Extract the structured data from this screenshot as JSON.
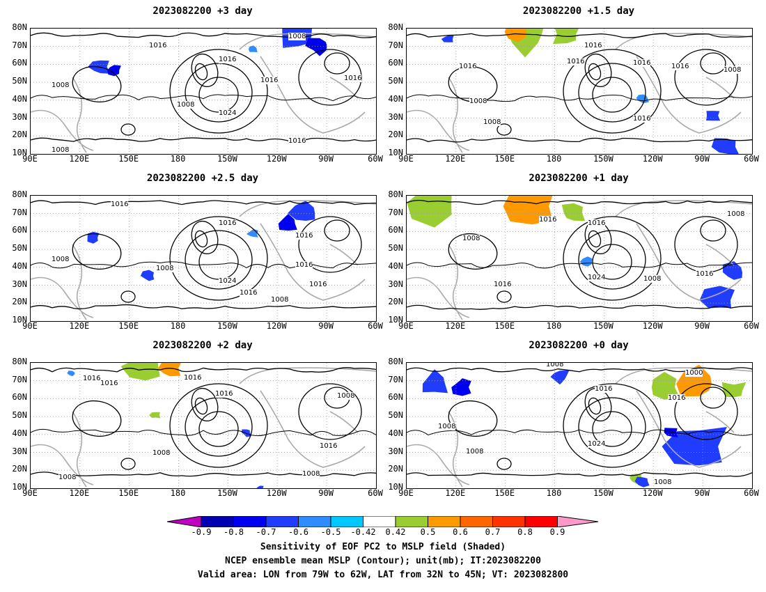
{
  "panels": [
    {
      "title": "2023082200 +3 day"
    },
    {
      "title": "2023082200 +1.5 day"
    },
    {
      "title": "2023082200 +2.5 day"
    },
    {
      "title": "2023082200 +1 day"
    },
    {
      "title": "2023082200 +2 day"
    },
    {
      "title": "2023082200 +0 day"
    }
  ],
  "axes": {
    "lat_ticks": [
      "80N",
      "70N",
      "60N",
      "50N",
      "40N",
      "30N",
      "20N",
      "10N"
    ],
    "lon_ticks": [
      "90E",
      "120E",
      "150E",
      "180",
      "150W",
      "120W",
      "90W",
      "60W"
    ]
  },
  "contour_labels": {
    "p0": [
      "1016",
      "1016",
      "1008",
      "1016",
      "1016",
      "1008",
      "1008",
      "1024",
      "1008",
      "1016"
    ],
    "p1": [
      "1016",
      "1016",
      "1008",
      "1016",
      "1008",
      "1016",
      "1016",
      "1008",
      "1016"
    ],
    "p2": [
      "1016",
      "1016",
      "1008",
      "1016",
      "1008",
      "1024",
      "1016",
      "1016",
      "1008",
      "1016"
    ],
    "p3": [
      "1008",
      "1016",
      "1016",
      "1008",
      "1008",
      "1016",
      "1024",
      "1016"
    ],
    "p4": [
      "1016",
      "1016",
      "1016",
      "1016",
      "1008",
      "1008",
      "1008",
      "1016",
      "1008"
    ],
    "p5": [
      "1008",
      "1000",
      "1016",
      "1016",
      "1008",
      "1024",
      "1008",
      "1008"
    ]
  },
  "colorbar": {
    "labels": [
      "-0.9",
      "-0.8",
      "-0.7",
      "-0.6",
      "-0.5",
      "-0.42",
      "0.42",
      "0.5",
      "0.6",
      "0.7",
      "0.8",
      "0.9"
    ],
    "colors": [
      "#0000b0",
      "#0000f0",
      "#1f3cff",
      "#2f8cff",
      "#00c8ff",
      "#ffffff",
      "#9acd32",
      "#ff9900",
      "#ff6600",
      "#ff3300",
      "#ff0000"
    ],
    "low_color": "#c000c0",
    "high_color": "#ff99cc"
  },
  "captions": [
    "Sensitivity of EOF PC2 to MSLP field (Shaded)",
    "NCEP ensemble mean MSLP (Contour); unit(mb); IT:2023082200",
    "Valid area: LON from 79W to 62W, LAT from 32N to 45N; VT: 2023082800"
  ]
}
